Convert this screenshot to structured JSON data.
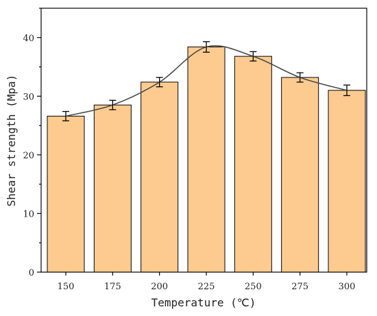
{
  "chart_data": {
    "type": "bar",
    "title": "",
    "xlabel": "Temperature (℃)",
    "ylabel": "Shear strength (Mpa)",
    "categories": [
      "150",
      "175",
      "200",
      "225",
      "250",
      "275",
      "300"
    ],
    "values": [
      26.6,
      28.5,
      32.4,
      38.4,
      36.8,
      33.2,
      31.0
    ],
    "errors": [
      0.8,
      0.8,
      0.8,
      0.9,
      0.8,
      0.8,
      0.9
    ],
    "ylim": [
      0,
      45
    ],
    "yticks": [
      "0",
      "10",
      "20",
      "30",
      "40"
    ],
    "trend_line": "smooth curve through bar tops",
    "grid": false,
    "colors": {
      "bar_fill": "#fdcb8f",
      "bar_edge": "#000000",
      "curve": "#4a4a4a",
      "error": "#000000"
    }
  }
}
